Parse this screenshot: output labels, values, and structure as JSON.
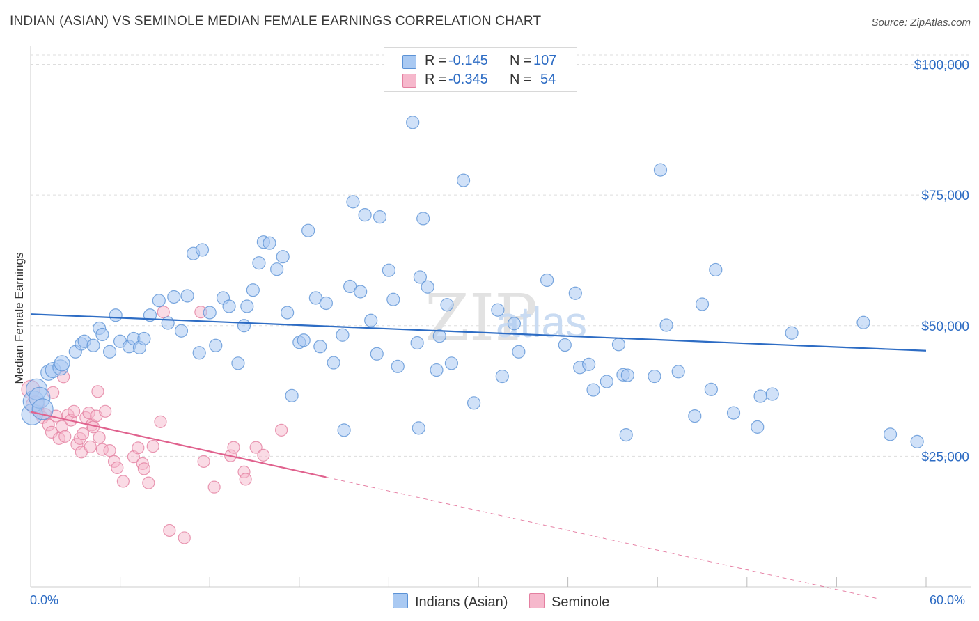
{
  "header": {
    "title": "INDIAN (ASIAN) VS SEMINOLE MEDIAN FEMALE EARNINGS CORRELATION CHART",
    "source": "Source: ZipAtlas.com"
  },
  "watermark": {
    "zip": "ZIP",
    "atlas": "atlas"
  },
  "legend": {
    "rows": [
      {
        "r_label": "R =",
        "r_value": "-0.145",
        "n_label": "N =",
        "n_value": "107",
        "color": "#a9c9f2"
      },
      {
        "r_label": "R =",
        "r_value": "-0.345",
        "n_label": "N =",
        "n_value": "54",
        "color": "#f6b8cc"
      }
    ]
  },
  "bottom_legend": {
    "series_a": "Indians (Asian)",
    "series_b": "Seminole"
  },
  "colors": {
    "blue_fill": "#a9c9f2",
    "blue_stroke": "#5b92d6",
    "blue_line": "#2d6cc4",
    "pink_fill": "#f6b8cc",
    "pink_stroke": "#e47fa0",
    "pink_line": "#e0628e",
    "axis_text": "#2d6cc4",
    "grid": "#dddddd"
  },
  "chart_data": {
    "type": "scatter",
    "title": "INDIAN (ASIAN) VS SEMINOLE MEDIAN FEMALE EARNINGS CORRELATION CHART",
    "xlabel": "",
    "ylabel": "Median Female Earnings",
    "xlim": [
      0,
      60
    ],
    "ylim": [
      0,
      103000
    ],
    "x_tick_labels": [
      "0.0%",
      "60.0%"
    ],
    "y_ticks": [
      25000,
      50000,
      75000,
      100000
    ],
    "y_tick_labels": [
      "$25,000",
      "$50,000",
      "$75,000",
      "$100,000"
    ],
    "grid": true,
    "legend_position": "top-center",
    "series": [
      {
        "name": "Indians (Asian)",
        "r": -0.145,
        "n": 107,
        "trend": {
          "x": [
            0,
            60
          ],
          "y": [
            52200,
            45200
          ]
        },
        "points": [
          [
            0.1,
            33000
          ],
          [
            0.2,
            35500
          ],
          [
            0.4,
            37800
          ],
          [
            0.6,
            36200
          ],
          [
            0.8,
            34000
          ],
          [
            1.2,
            41000
          ],
          [
            1.5,
            41500
          ],
          [
            2.0,
            42000
          ],
          [
            2.1,
            42800
          ],
          [
            3.0,
            45000
          ],
          [
            3.4,
            46500
          ],
          [
            3.6,
            47000
          ],
          [
            4.2,
            46200
          ],
          [
            4.6,
            49500
          ],
          [
            4.8,
            48300
          ],
          [
            5.3,
            45000
          ],
          [
            5.7,
            52000
          ],
          [
            6.0,
            47000
          ],
          [
            6.6,
            46000
          ],
          [
            6.9,
            47500
          ],
          [
            7.3,
            45800
          ],
          [
            7.6,
            47500
          ],
          [
            8.0,
            52000
          ],
          [
            8.6,
            54800
          ],
          [
            9.2,
            50500
          ],
          [
            9.6,
            55500
          ],
          [
            10.1,
            49000
          ],
          [
            10.5,
            55700
          ],
          [
            10.9,
            63800
          ],
          [
            11.5,
            64500
          ],
          [
            12.0,
            52500
          ],
          [
            11.3,
            44800
          ],
          [
            12.4,
            46200
          ],
          [
            12.9,
            55300
          ],
          [
            13.3,
            53700
          ],
          [
            13.9,
            42800
          ],
          [
            14.3,
            50000
          ],
          [
            14.5,
            53700
          ],
          [
            14.9,
            56800
          ],
          [
            15.3,
            62000
          ],
          [
            15.6,
            66000
          ],
          [
            16.0,
            65800
          ],
          [
            16.5,
            60800
          ],
          [
            16.9,
            63200
          ],
          [
            17.2,
            52500
          ],
          [
            17.5,
            36600
          ],
          [
            18.0,
            46800
          ],
          [
            18.3,
            47200
          ],
          [
            18.6,
            68200
          ],
          [
            19.1,
            55300
          ],
          [
            19.4,
            46000
          ],
          [
            19.8,
            54300
          ],
          [
            20.3,
            42900
          ],
          [
            20.9,
            48200
          ],
          [
            21.4,
            57500
          ],
          [
            21.6,
            73700
          ],
          [
            22.1,
            56500
          ],
          [
            22.4,
            71200
          ],
          [
            22.8,
            51000
          ],
          [
            23.2,
            44600
          ],
          [
            23.4,
            70800
          ],
          [
            24.0,
            60600
          ],
          [
            24.3,
            55000
          ],
          [
            24.6,
            42200
          ],
          [
            21.0,
            30000
          ],
          [
            25.6,
            88900
          ],
          [
            25.9,
            46700
          ],
          [
            26.1,
            59300
          ],
          [
            26.3,
            70500
          ],
          [
            26.6,
            57400
          ],
          [
            27.2,
            41500
          ],
          [
            27.4,
            48000
          ],
          [
            27.9,
            54000
          ],
          [
            28.2,
            42800
          ],
          [
            29.0,
            77800
          ],
          [
            29.7,
            35200
          ],
          [
            31.3,
            53000
          ],
          [
            31.6,
            40300
          ],
          [
            32.4,
            50400
          ],
          [
            32.7,
            45000
          ],
          [
            26.0,
            30400
          ],
          [
            34.6,
            58700
          ],
          [
            35.8,
            46300
          ],
          [
            36.5,
            56200
          ],
          [
            36.8,
            42000
          ],
          [
            37.4,
            42600
          ],
          [
            37.7,
            37700
          ],
          [
            38.6,
            39300
          ],
          [
            39.4,
            46400
          ],
          [
            39.7,
            40600
          ],
          [
            39.9,
            29100
          ],
          [
            40.0,
            40500
          ],
          [
            41.8,
            40300
          ],
          [
            42.2,
            79800
          ],
          [
            42.6,
            50100
          ],
          [
            43.4,
            41200
          ],
          [
            44.5,
            32700
          ],
          [
            45.0,
            54100
          ],
          [
            45.6,
            37800
          ],
          [
            45.9,
            60700
          ],
          [
            47.1,
            33300
          ],
          [
            48.7,
            30600
          ],
          [
            48.9,
            36500
          ],
          [
            49.7,
            36900
          ],
          [
            51.0,
            48600
          ],
          [
            55.8,
            50600
          ],
          [
            57.6,
            29200
          ],
          [
            59.4,
            27800
          ]
        ]
      },
      {
        "name": "Seminole",
        "r": -0.345,
        "n": 54,
        "trend": {
          "x": [
            0,
            19.8
          ],
          "y": [
            33500,
            21000
          ]
        },
        "trend_extension": {
          "x": [
            19.8,
            56.7
          ],
          "y": [
            21000,
            -2200
          ]
        },
        "points": [
          [
            0.0,
            37800
          ],
          [
            0.3,
            34800
          ],
          [
            0.5,
            33600
          ],
          [
            0.8,
            32400
          ],
          [
            1.0,
            33000
          ],
          [
            1.2,
            31000
          ],
          [
            1.4,
            29600
          ],
          [
            1.5,
            37200
          ],
          [
            1.7,
            32700
          ],
          [
            1.9,
            28400
          ],
          [
            2.1,
            30700
          ],
          [
            2.2,
            40200
          ],
          [
            2.3,
            28800
          ],
          [
            2.5,
            32900
          ],
          [
            2.7,
            31900
          ],
          [
            2.9,
            33600
          ],
          [
            3.1,
            27300
          ],
          [
            3.3,
            28400
          ],
          [
            3.4,
            25800
          ],
          [
            3.5,
            29300
          ],
          [
            3.7,
            32400
          ],
          [
            3.9,
            33300
          ],
          [
            4.0,
            26800
          ],
          [
            4.1,
            31000
          ],
          [
            4.2,
            30600
          ],
          [
            4.4,
            32700
          ],
          [
            4.5,
            37400
          ],
          [
            4.6,
            28600
          ],
          [
            4.8,
            26300
          ],
          [
            5.0,
            33600
          ],
          [
            5.3,
            26100
          ],
          [
            5.6,
            24000
          ],
          [
            5.8,
            22800
          ],
          [
            6.2,
            20200
          ],
          [
            6.9,
            24900
          ],
          [
            7.2,
            26600
          ],
          [
            7.5,
            23600
          ],
          [
            7.6,
            22600
          ],
          [
            7.9,
            19900
          ],
          [
            8.2,
            26900
          ],
          [
            8.7,
            31600
          ],
          [
            8.9,
            52600
          ],
          [
            9.3,
            10800
          ],
          [
            10.3,
            9400
          ],
          [
            11.4,
            52600
          ],
          [
            11.6,
            24000
          ],
          [
            12.3,
            19100
          ],
          [
            13.4,
            25100
          ],
          [
            13.6,
            26700
          ],
          [
            14.3,
            22000
          ],
          [
            14.4,
            20600
          ],
          [
            15.1,
            26700
          ],
          [
            15.6,
            25200
          ],
          [
            16.8,
            30000
          ]
        ]
      }
    ]
  }
}
